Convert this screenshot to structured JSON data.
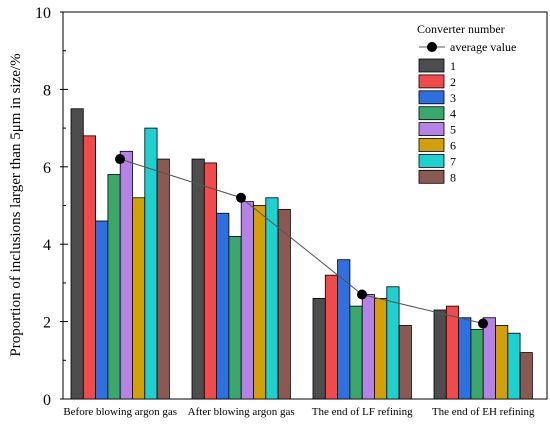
{
  "chart_data": {
    "type": "bar",
    "ylabel": "Proportion of inclusions larger than 5μm in size/%",
    "xlabel": "",
    "ylim": [
      0,
      10
    ],
    "yticks": [
      "0",
      "2",
      "4",
      "6",
      "8",
      "10"
    ],
    "categories": [
      "Before blowing argon gas",
      "After blowing argon gas",
      "The end of LF refining",
      "The end of EH refining"
    ],
    "series": [
      {
        "name": "1",
        "color": "#4d4d4d",
        "values": [
          7.5,
          6.2,
          2.6,
          2.3
        ]
      },
      {
        "name": "2",
        "color": "#f04a4a",
        "values": [
          6.8,
          6.1,
          3.2,
          2.4
        ]
      },
      {
        "name": "3",
        "color": "#2f6fe0",
        "values": [
          4.6,
          4.8,
          3.6,
          2.1
        ]
      },
      {
        "name": "4",
        "color": "#3aa86a",
        "values": [
          5.8,
          4.2,
          2.4,
          1.8
        ]
      },
      {
        "name": "5",
        "color": "#b582e6",
        "values": [
          6.4,
          5.1,
          2.7,
          2.1
        ]
      },
      {
        "name": "6",
        "color": "#d4a00a",
        "values": [
          5.2,
          5.0,
          2.6,
          1.9
        ]
      },
      {
        "name": "7",
        "color": "#1fd0d0",
        "values": [
          7.0,
          5.2,
          2.9,
          1.7
        ]
      },
      {
        "name": "8",
        "color": "#8a5a52",
        "values": [
          6.2,
          4.9,
          1.9,
          1.2
        ]
      }
    ],
    "line": {
      "name": "average value",
      "values": [
        6.2,
        5.2,
        2.7,
        1.95
      ]
    },
    "legend": {
      "title": "Converter number",
      "placement": "top-right"
    }
  }
}
